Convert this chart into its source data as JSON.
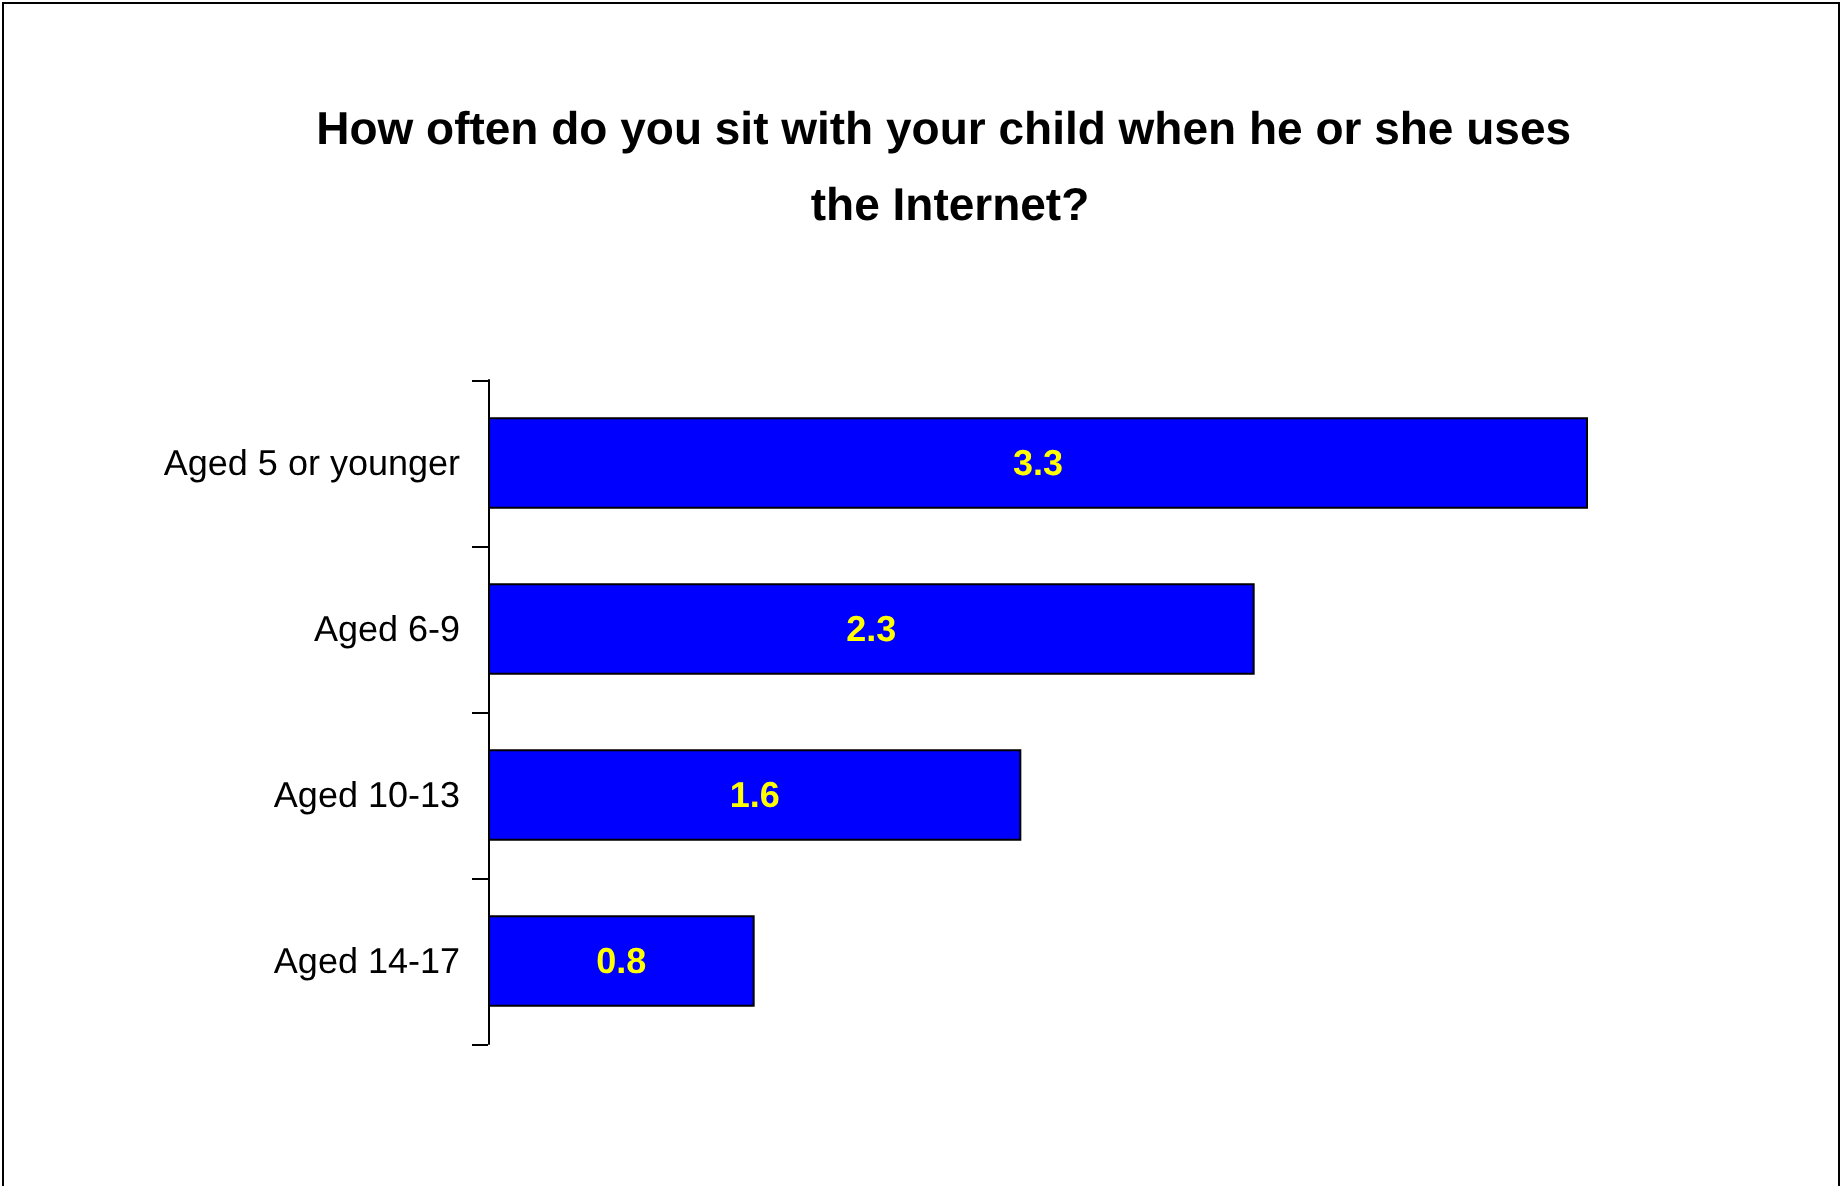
{
  "chart_data": {
    "type": "bar",
    "orientation": "horizontal",
    "title": "How often do you sit with your child when he or she uses the Internet?",
    "categories": [
      "Aged 5 or younger",
      "Aged 6-9",
      "Aged 10-13",
      "Aged 14-17"
    ],
    "values": [
      3.3,
      2.3,
      1.6,
      0.8
    ],
    "color": "#0000ff",
    "data_labels": true
  }
}
